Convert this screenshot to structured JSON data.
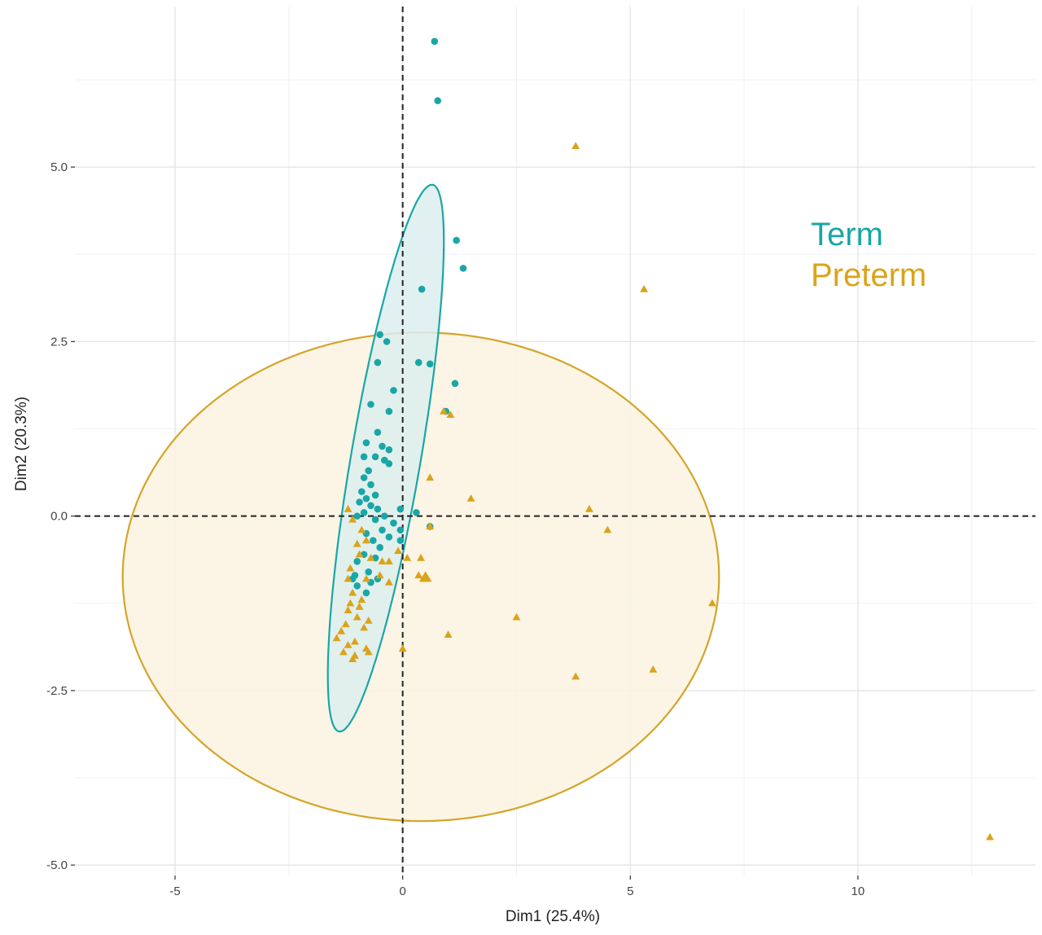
{
  "chart_data": {
    "type": "scatter",
    "xlabel": "Dim1 (25.4%)",
    "ylabel": "Dim2 (20.3%)",
    "xlim": [
      -7.2,
      13.9
    ],
    "ylim": [
      -5.15,
      7.3
    ],
    "x_ticks": [
      -5,
      0,
      5,
      10
    ],
    "y_ticks": [
      5.0,
      2.5,
      0.0,
      -2.5,
      -5.0
    ],
    "x_tick_labels": [
      "-5",
      "0",
      "5",
      "10"
    ],
    "y_tick_labels": [
      "5.0",
      "2.5",
      "0.0",
      "-2.5",
      "-5.0"
    ],
    "grid": true,
    "reference_lines": {
      "x": 0,
      "y": 0
    },
    "legend_position": "right",
    "series": [
      {
        "name": "Term",
        "color": "#1aa6a6",
        "marker": "circle",
        "points": [
          [
            0.7,
            6.8
          ],
          [
            0.77,
            5.95
          ],
          [
            1.18,
            3.95
          ],
          [
            1.33,
            3.55
          ],
          [
            0.42,
            3.25
          ],
          [
            -0.5,
            2.6
          ],
          [
            -0.35,
            2.5
          ],
          [
            0.35,
            2.2
          ],
          [
            0.6,
            2.18
          ],
          [
            -0.55,
            2.2
          ],
          [
            1.15,
            1.9
          ],
          [
            -0.2,
            1.8
          ],
          [
            0.95,
            1.5
          ],
          [
            -0.7,
            1.6
          ],
          [
            -0.3,
            1.5
          ],
          [
            -0.55,
            1.2
          ],
          [
            -0.8,
            1.05
          ],
          [
            -0.45,
            1.0
          ],
          [
            -0.3,
            0.95
          ],
          [
            -0.85,
            0.85
          ],
          [
            -0.6,
            0.85
          ],
          [
            -0.4,
            0.8
          ],
          [
            -0.3,
            0.75
          ],
          [
            -0.75,
            0.65
          ],
          [
            -0.85,
            0.55
          ],
          [
            -0.7,
            0.45
          ],
          [
            -0.9,
            0.35
          ],
          [
            -0.6,
            0.3
          ],
          [
            -0.8,
            0.25
          ],
          [
            -0.95,
            0.2
          ],
          [
            -0.7,
            0.15
          ],
          [
            -0.55,
            0.1
          ],
          [
            -0.85,
            0.05
          ],
          [
            -1.0,
            0.0
          ],
          [
            -0.6,
            -0.05
          ],
          [
            -0.4,
            0.0
          ],
          [
            -0.05,
            0.1
          ],
          [
            0.3,
            0.05
          ],
          [
            -0.2,
            -0.1
          ],
          [
            -0.45,
            -0.2
          ],
          [
            -0.8,
            -0.25
          ],
          [
            -0.05,
            -0.2
          ],
          [
            0.6,
            -0.15
          ],
          [
            -0.65,
            -0.35
          ],
          [
            -0.5,
            -0.45
          ],
          [
            -0.85,
            -0.55
          ],
          [
            -0.3,
            -0.3
          ],
          [
            -0.05,
            -0.35
          ],
          [
            -0.6,
            -0.6
          ],
          [
            -1.0,
            -0.65
          ],
          [
            -0.75,
            -0.8
          ],
          [
            -1.1,
            -0.9
          ],
          [
            -0.7,
            -0.95
          ],
          [
            -0.55,
            -0.9
          ],
          [
            -1.0,
            -1.0
          ],
          [
            -1.05,
            -0.85
          ],
          [
            -0.8,
            -1.1
          ]
        ]
      },
      {
        "name": "Preterm",
        "color": "#dba31a",
        "marker": "triangle",
        "points": [
          [
            3.8,
            5.3
          ],
          [
            5.3,
            3.25
          ],
          [
            0.9,
            1.5
          ],
          [
            1.05,
            1.45
          ],
          [
            1.5,
            0.25
          ],
          [
            0.6,
            0.55
          ],
          [
            4.1,
            0.1
          ],
          [
            4.5,
            -0.2
          ],
          [
            6.8,
            -1.25
          ],
          [
            2.5,
            -1.45
          ],
          [
            1.0,
            -1.7
          ],
          [
            5.5,
            -2.2
          ],
          [
            3.8,
            -2.3
          ],
          [
            12.9,
            -4.6
          ],
          [
            0.0,
            -1.9
          ],
          [
            0.6,
            -0.15
          ],
          [
            -0.1,
            -0.5
          ],
          [
            0.1,
            -0.6
          ],
          [
            0.4,
            -0.6
          ],
          [
            0.35,
            -0.85
          ],
          [
            0.45,
            -0.9
          ],
          [
            0.5,
            -0.85
          ],
          [
            0.55,
            -0.9
          ],
          [
            -1.2,
            0.1
          ],
          [
            -1.1,
            -0.05
          ],
          [
            -0.9,
            -0.2
          ],
          [
            -0.8,
            -0.35
          ],
          [
            -1.0,
            -0.4
          ],
          [
            -0.7,
            -0.6
          ],
          [
            -0.45,
            -0.65
          ],
          [
            -0.3,
            -0.65
          ],
          [
            -0.95,
            -0.55
          ],
          [
            -1.15,
            -0.75
          ],
          [
            -0.5,
            -0.85
          ],
          [
            -0.8,
            -0.9
          ],
          [
            -1.2,
            -0.9
          ],
          [
            -0.3,
            -0.95
          ],
          [
            -1.1,
            -1.1
          ],
          [
            -0.9,
            -1.2
          ],
          [
            -1.15,
            -1.25
          ],
          [
            -0.95,
            -1.3
          ],
          [
            -1.2,
            -1.35
          ],
          [
            -1.0,
            -1.45
          ],
          [
            -0.75,
            -1.5
          ],
          [
            -1.25,
            -1.55
          ],
          [
            -0.85,
            -1.6
          ],
          [
            -1.35,
            -1.65
          ],
          [
            -0.8,
            -1.9
          ],
          [
            -1.2,
            -1.85
          ],
          [
            -1.05,
            -1.8
          ],
          [
            -1.3,
            -1.95
          ],
          [
            -1.1,
            -2.05
          ],
          [
            -0.75,
            -1.95
          ],
          [
            -1.45,
            -1.75
          ],
          [
            -1.05,
            -2.0
          ]
        ]
      }
    ],
    "ellipses": [
      {
        "series": "Term",
        "cx": -0.37,
        "cy": 0.83,
        "rx": 4.05,
        "ry": 0.75,
        "angle_deg": 75,
        "color": "#1aa6a6",
        "fill": "#dcefef"
      },
      {
        "series": "Preterm",
        "cx": 0.4,
        "cy": -0.87,
        "rx": 6.55,
        "ry": 3.5,
        "angle_deg": 0,
        "color": "#d4a52a",
        "fill": "#fbf3e0"
      }
    ]
  }
}
